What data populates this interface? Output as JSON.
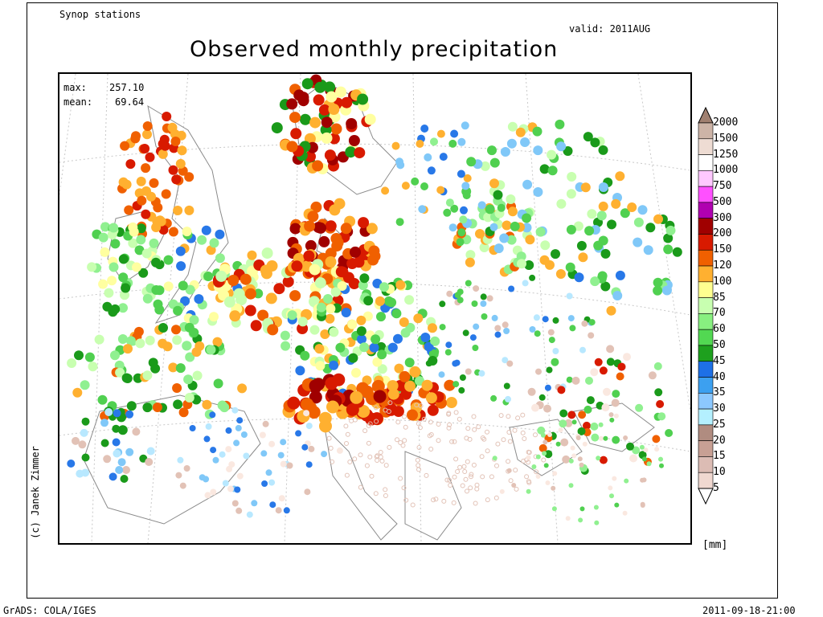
{
  "header": {
    "subtitle": "Synop stations",
    "valid": "valid: 2011AUG",
    "title": "Observed monthly precipitation"
  },
  "stats": {
    "max_label": "max:",
    "max_value": "257.10",
    "mean_label": "mean:",
    "mean_value": "69.64"
  },
  "credit": "(c) Janek Zimmer",
  "unit": "[mm]",
  "footer": {
    "left": "GrADS: COLA/IGES",
    "right": "2011-09-18-21:00"
  },
  "legend": {
    "labels": [
      "2000",
      "1500",
      "1250",
      "1000",
      "750",
      "500",
      "300",
      "200",
      "150",
      "120",
      "100",
      "85",
      "70",
      "60",
      "50",
      "45",
      "40",
      "35",
      "30",
      "25",
      "20",
      "15",
      "10",
      "5"
    ],
    "colors": [
      "#cdb4a7",
      "#eedcd3",
      "#ffffff",
      "#ffc8ff",
      "#ff50ff",
      "#b000b0",
      "#a00000",
      "#d81a00",
      "#f06000",
      "#ffb030",
      "#ffff90",
      "#c8ffb0",
      "#88f080",
      "#52d852",
      "#1ea01e",
      "#1e70e6",
      "#3ca0f0",
      "#8cc8ff",
      "#b4f0ff",
      "#b08c80",
      "#c8a094",
      "#dcbcb4",
      "#f0d8d0",
      "#fae8e0"
    ],
    "top_color": "#a08070",
    "bottom_color": "#ffffff"
  },
  "map_points_color_key": [
    "#fae8e0",
    "#e2c2b6",
    "#b8e8ff",
    "#80c8f8",
    "#2878e8",
    "#1a9a1a",
    "#50d050",
    "#90f090",
    "#c8ffb0",
    "#ffffa0",
    "#ffb030",
    "#f06000",
    "#d81a00",
    "#a00000"
  ]
}
